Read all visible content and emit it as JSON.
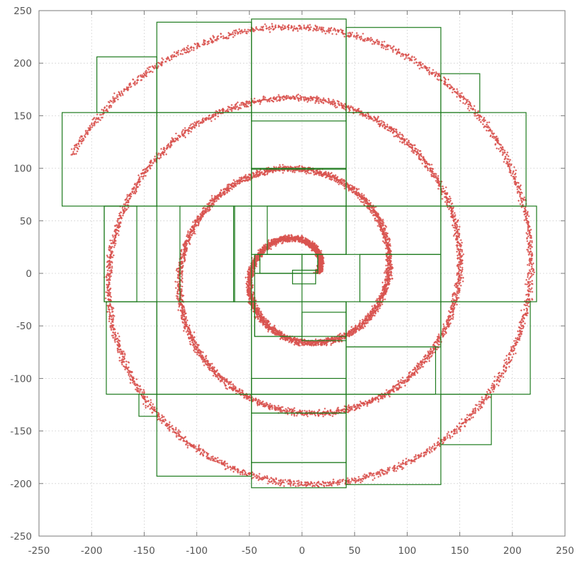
{
  "chart_data": {
    "type": "scatter",
    "title": "",
    "xlabel": "",
    "ylabel": "",
    "xlim": [
      -250,
      250
    ],
    "ylim": [
      -250,
      250
    ],
    "grid": true,
    "x_ticks": [
      -250,
      -200,
      -150,
      -100,
      -50,
      0,
      50,
      100,
      150,
      200,
      250
    ],
    "y_ticks": [
      -250,
      -200,
      -150,
      -100,
      -50,
      0,
      50,
      100,
      150,
      200,
      250
    ],
    "x_tick_labels": [
      "-250",
      "-200",
      "-150",
      "-100",
      "-50",
      "0",
      "50",
      "100",
      "150",
      "200",
      "250"
    ],
    "y_tick_labels": [
      "-250",
      "-200",
      "-150",
      "-100",
      "-50",
      "0",
      "50",
      "100",
      "150",
      "200",
      "250"
    ],
    "spiral": {
      "description_of_data": "dense band of points along an Archimedean spiral",
      "center": [
        0,
        0
      ],
      "radius_per_turn": 68,
      "start_radius": 15,
      "end_point": [
        -219,
        112
      ],
      "band_width": 12,
      "color": "#d9534f"
    },
    "rectangles": {
      "color": "#1e7b1e",
      "boxes": [
        [
          -228,
          64,
          -138,
          153
        ],
        [
          -138,
          64,
          -48,
          153
        ],
        [
          -48,
          64,
          42,
          100
        ],
        [
          -48,
          99,
          42,
          153
        ],
        [
          -48,
          145,
          42,
          242
        ],
        [
          -138,
          153,
          -48,
          239
        ],
        [
          -195,
          153,
          -138,
          206
        ],
        [
          42,
          64,
          132,
          153
        ],
        [
          132,
          64,
          213,
          153
        ],
        [
          132,
          153,
          169,
          190
        ],
        [
          42,
          153,
          132,
          234
        ],
        [
          -188,
          -27,
          -138,
          64
        ],
        [
          -188,
          -27,
          -157,
          64
        ],
        [
          -116,
          -27,
          -64,
          64
        ],
        [
          -65,
          -27,
          -48,
          64
        ],
        [
          -48,
          18,
          42,
          64
        ],
        [
          -33,
          18,
          42,
          64
        ],
        [
          42,
          18,
          132,
          64
        ],
        [
          132,
          -27,
          223,
          64
        ],
        [
          -45,
          18,
          0,
          0
        ],
        [
          -40,
          0,
          15,
          18
        ],
        [
          0,
          3,
          15,
          18
        ],
        [
          -9,
          -10,
          13,
          3
        ],
        [
          -45,
          -60,
          0,
          0
        ],
        [
          -45,
          -27,
          42,
          -60
        ],
        [
          0,
          -37,
          42,
          -64
        ],
        [
          55,
          -27,
          132,
          18
        ],
        [
          -48,
          -27,
          42,
          -115
        ],
        [
          -138,
          -27,
          -48,
          -115
        ],
        [
          -186,
          -27,
          -138,
          -115
        ],
        [
          42,
          -70,
          132,
          -27
        ],
        [
          132,
          -27,
          217,
          -115
        ],
        [
          42,
          -115,
          127,
          -70
        ],
        [
          -48,
          -100,
          42,
          -115
        ],
        [
          -48,
          -115,
          42,
          -133
        ],
        [
          -138,
          -115,
          -48,
          -193
        ],
        [
          -155,
          -115,
          -138,
          -136
        ],
        [
          -48,
          -133,
          42,
          -180
        ],
        [
          -48,
          -180,
          42,
          -204
        ],
        [
          42,
          -115,
          132,
          -201
        ],
        [
          132,
          -115,
          180,
          -163
        ]
      ]
    }
  }
}
